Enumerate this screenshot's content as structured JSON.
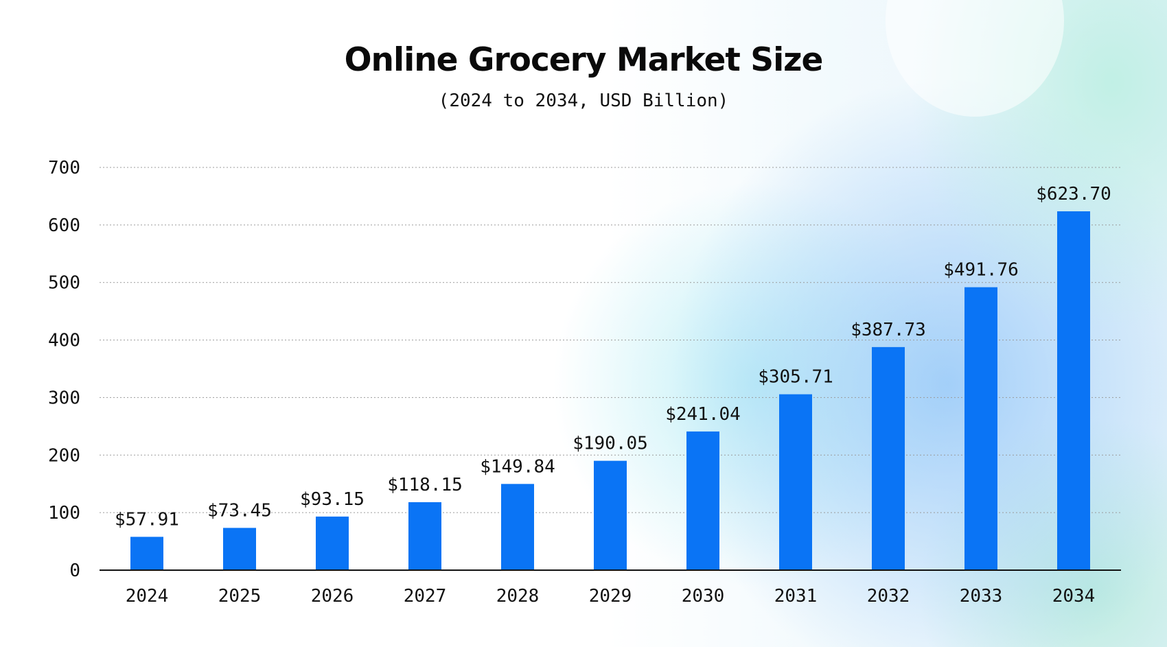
{
  "chart_data": {
    "type": "bar",
    "title": "Online Grocery Market Size",
    "subtitle": "(2024 to 2034, USD Billion)",
    "xlabel": "",
    "ylabel": "",
    "categories": [
      "2024",
      "2025",
      "2026",
      "2027",
      "2028",
      "2029",
      "2030",
      "2031",
      "2032",
      "2033",
      "2034"
    ],
    "values": [
      57.91,
      73.45,
      93.15,
      118.15,
      149.84,
      190.05,
      241.04,
      305.71,
      387.73,
      491.76,
      623.7
    ],
    "value_labels": [
      "$57.91",
      "$73.45",
      "$93.15",
      "$118.15",
      "$149.84",
      "$190.05",
      "$241.04",
      "$305.71",
      "$387.73",
      "$491.76",
      "$623.70"
    ],
    "yticks": [
      0,
      100,
      200,
      300,
      400,
      500,
      600,
      700
    ],
    "ylim": [
      0,
      700
    ],
    "grid": "horizontal dotted",
    "legend": "none",
    "bar_color": "#0a74f5"
  }
}
